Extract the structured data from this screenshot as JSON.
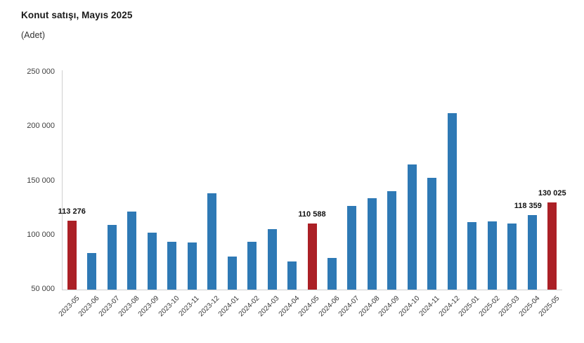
{
  "header": {
    "title": "Konut satışı, Mayıs 2025",
    "unit": "(Adet)"
  },
  "colors": {
    "bar_blue": "#2e79b5",
    "bar_red": "#ab2026",
    "axis_line": "#d0d0d0",
    "tick_text": "#404040",
    "title_text": "#1a1a1a"
  },
  "chart_data": {
    "type": "bar",
    "title": "Konut satışı, Mayıs 2025",
    "ylabel": "(Adet)",
    "xlabel": "",
    "grid": false,
    "legend": false,
    "categories": [
      "2023-05",
      "2023-06",
      "2023-07",
      "2023-08",
      "2023-09",
      "2023-10",
      "2023-11",
      "2023-12",
      "2024-01",
      "2024-02",
      "2024-03",
      "2024-04",
      "2024-05",
      "2024-06",
      "2024-07",
      "2024-08",
      "2024-09",
      "2024-10",
      "2024-11",
      "2024-12",
      "2025-01",
      "2025-02",
      "2025-03",
      "2025-04",
      "2025-05"
    ],
    "values": [
      113276,
      83636,
      109548,
      122091,
      102656,
      93761,
      93514,
      138577,
      80308,
      93902,
      105394,
      75569,
      110588,
      79313,
      127088,
      134155,
      140919,
      165138,
      153014,
      212637,
      112173,
      112818,
      110795,
      118359,
      130025
    ],
    "highlighted_categories": [
      "2023-05",
      "2024-05",
      "2025-05"
    ],
    "value_labels": [
      {
        "category": "2023-05",
        "text": "113 276"
      },
      {
        "category": "2024-05",
        "text": "110 588"
      },
      {
        "category": "2025-04",
        "text": "118 359"
      },
      {
        "category": "2025-05",
        "text": "130 025"
      }
    ],
    "y_axis": {
      "min": 50000,
      "max": 250000,
      "tick_interval": 50000,
      "tick_labels": [
        "50 000",
        "100 000",
        "150 000",
        "200 000",
        "250 000"
      ]
    },
    "bar_color": "#2e79b5",
    "highlight_color": "#ab2026"
  }
}
